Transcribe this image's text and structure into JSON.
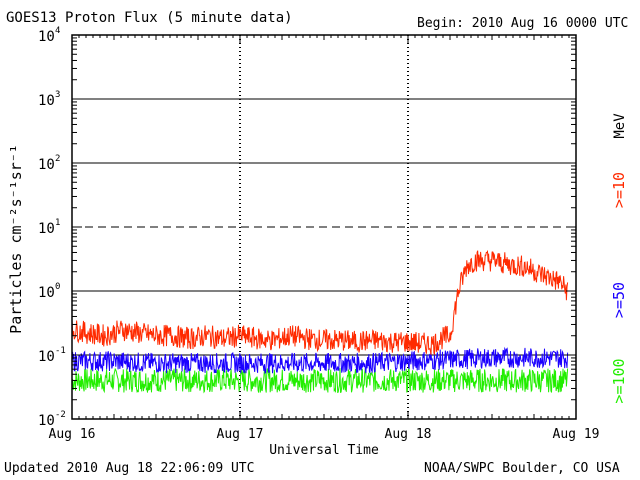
{
  "header": {
    "title": "GOES13 Proton Flux (5 minute data)",
    "begin": "Begin: 2010 Aug 16 0000 UTC"
  },
  "footer": {
    "updated": "Updated 2010 Aug 18 22:06:09 UTC",
    "credit": "NOAA/SWPC Boulder, CO USA"
  },
  "colors": {
    "red": "#ff2a00",
    "blue": "#1a00ff",
    "green": "#22ee00"
  },
  "chart_data": {
    "type": "line",
    "title": "GOES13 Proton Flux (5 minute data)",
    "xlabel": "Universal Time",
    "ylabel": "Particles cm⁻²s⁻¹sr⁻¹",
    "yscale": "log",
    "ylim": [
      0.01,
      10000
    ],
    "xlim": [
      0,
      3
    ],
    "x_ticks": [
      "Aug 16",
      "Aug 17",
      "Aug 18",
      "Aug 19"
    ],
    "y_ticks": [
      {
        "base": "10",
        "exp": "-2",
        "value": 0.01
      },
      {
        "base": "10",
        "exp": "-1",
        "value": 0.1
      },
      {
        "base": "10",
        "exp": "0",
        "value": 1
      },
      {
        "base": "10",
        "exp": "1",
        "value": 10
      },
      {
        "base": "10",
        "exp": "2",
        "value": 100
      },
      {
        "base": "10",
        "exp": "3",
        "value": 1000
      },
      {
        "base": "10",
        "exp": "4",
        "value": 10000
      }
    ],
    "solid_gridlines": [
      0.1,
      1,
      100,
      1000
    ],
    "dashed_gridlines": [
      10
    ],
    "unit_label": "MeV",
    "series": [
      {
        "name": ">=10",
        "color": "#ff2a00",
        "x": [
          0,
          0.1,
          0.2,
          0.3,
          0.4,
          0.5,
          0.6,
          0.7,
          0.8,
          0.9,
          1.0,
          1.1,
          1.2,
          1.3,
          1.4,
          1.5,
          1.6,
          1.7,
          1.8,
          1.9,
          2.0,
          2.1,
          2.15,
          2.2,
          2.25,
          2.3,
          2.35,
          2.4,
          2.5,
          2.6,
          2.7,
          2.8,
          2.9,
          2.95
        ],
        "y": [
          0.25,
          0.22,
          0.2,
          0.25,
          0.22,
          0.2,
          0.2,
          0.18,
          0.2,
          0.18,
          0.2,
          0.18,
          0.17,
          0.2,
          0.18,
          0.17,
          0.17,
          0.16,
          0.17,
          0.16,
          0.16,
          0.15,
          0.15,
          0.18,
          0.2,
          1.0,
          2.5,
          3.0,
          3.0,
          2.6,
          2.4,
          1.8,
          1.4,
          1.0
        ]
      },
      {
        "name": ">=50",
        "color": "#1a00ff",
        "x": [
          0,
          0.25,
          0.5,
          0.75,
          1.0,
          1.25,
          1.5,
          1.75,
          2.0,
          2.25,
          2.5,
          2.75,
          2.95
        ],
        "y": [
          0.08,
          0.08,
          0.075,
          0.075,
          0.075,
          0.075,
          0.075,
          0.075,
          0.08,
          0.085,
          0.09,
          0.09,
          0.09
        ]
      },
      {
        "name": ">=100",
        "color": "#22ee00",
        "x": [
          0,
          0.5,
          1.0,
          1.5,
          2.0,
          2.5,
          2.95
        ],
        "y": [
          0.04,
          0.04,
          0.04,
          0.04,
          0.04,
          0.04,
          0.04
        ]
      }
    ]
  }
}
